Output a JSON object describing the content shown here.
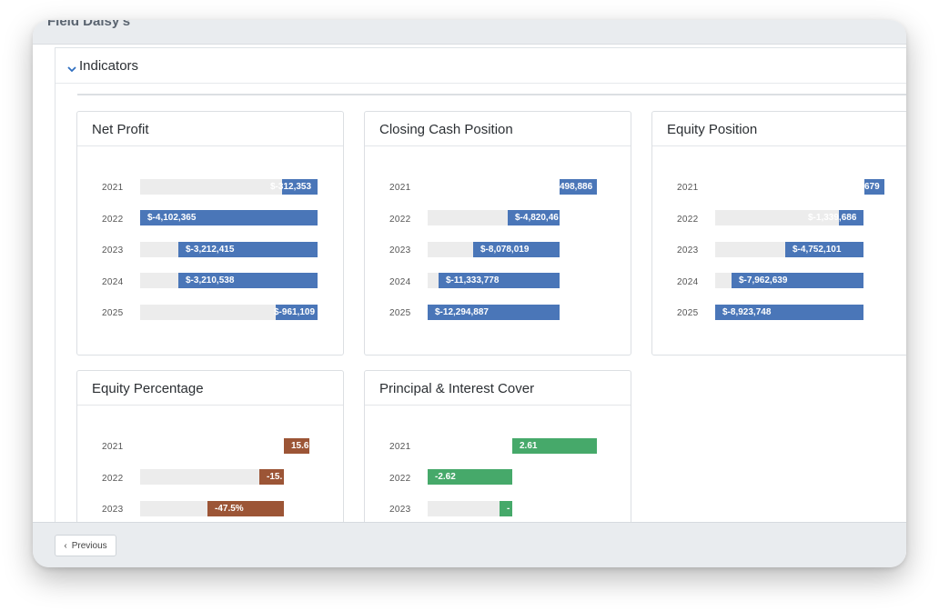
{
  "app": {
    "title": "Field Daisy's"
  },
  "panel": {
    "title": "Indicators"
  },
  "colors": {
    "blue": "#4a76b8",
    "brown": "#9c5536",
    "green": "#46a96a",
    "track": "#ececec"
  },
  "cards": [
    {
      "title": "Net Profit",
      "rows": [
        {
          "year": "2021",
          "label": "$-312,353"
        },
        {
          "year": "2022",
          "label": "$-4,102,365"
        },
        {
          "year": "2023",
          "label": "$-3,212,415"
        },
        {
          "year": "2024",
          "label": "$-3,210,538"
        },
        {
          "year": "2025",
          "label": "$-961,109"
        }
      ]
    },
    {
      "title": "Closing Cash Position",
      "rows": [
        {
          "year": "2021",
          "label": "498,886"
        },
        {
          "year": "2022",
          "label": "$-4,820,46"
        },
        {
          "year": "2023",
          "label": "$-8,078,019"
        },
        {
          "year": "2024",
          "label": "$-11,333,778"
        },
        {
          "year": "2025",
          "label": "$-12,294,887"
        }
      ]
    },
    {
      "title": "Equity Position",
      "rows": [
        {
          "year": "2021",
          "label": "679"
        },
        {
          "year": "2022",
          "label": "$-1,339,686"
        },
        {
          "year": "2023",
          "label": "$-4,752,101"
        },
        {
          "year": "2024",
          "label": "$-7,962,639"
        },
        {
          "year": "2025",
          "label": "$-8,923,748"
        }
      ]
    },
    {
      "title": "Equity Percentage",
      "rows": [
        {
          "year": "2021",
          "label": "15.6"
        },
        {
          "year": "2022",
          "label": "-15."
        },
        {
          "year": "2023",
          "label": "-47.5%"
        }
      ]
    },
    {
      "title": "Principal & Interest Cover",
      "rows": [
        {
          "year": "2021",
          "label": "2.61"
        },
        {
          "year": "2022",
          "label": "-2.62"
        },
        {
          "year": "2023",
          "label": "-"
        }
      ]
    }
  ],
  "footer": {
    "prev_label": "Previous"
  }
}
